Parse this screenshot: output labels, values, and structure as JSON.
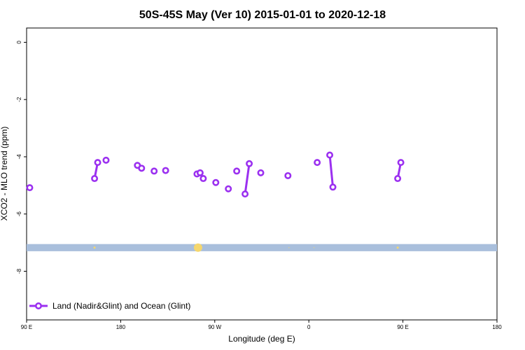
{
  "chart_data": {
    "type": "scatter",
    "title": "50S-45S May (Ver 10)   2015-01-01 to 2020-12-18",
    "xlabel": "Longitude (deg E)",
    "ylabel": "XCO2 - MLO trend (ppm)",
    "xlim": [
      90,
      450
    ],
    "ylim": [
      -9.7,
      0.5
    ],
    "x_ticks": [
      {
        "value": 90,
        "label": "90 E"
      },
      {
        "value": 180,
        "label": "180"
      },
      {
        "value": 270,
        "label": "90 W"
      },
      {
        "value": 360,
        "label": "0"
      },
      {
        "value": 450,
        "label": "90 E"
      }
    ],
    "x_ticks_end": {
      "value": 540,
      "label": "180"
    },
    "y_ticks": [
      {
        "value": 0,
        "label": "0"
      },
      {
        "value": -2,
        "label": "-2"
      },
      {
        "value": -4,
        "label": "-4"
      },
      {
        "value": -6,
        "label": "-6"
      },
      {
        "value": -8,
        "label": "-8"
      }
    ],
    "grid": false,
    "legend_placement": "bottom-left",
    "colors": {
      "series": "#9b30f0",
      "band": "#a9bfdc",
      "band_dots": "#f5d76e"
    },
    "series": [
      {
        "name": "Land (Nadir&Glint) and Ocean (Glint)",
        "points": [
          [
            93,
            -5.08
          ],
          [
            155,
            -4.76
          ],
          [
            158,
            -4.2
          ],
          [
            166,
            -4.12
          ],
          [
            196,
            -4.3
          ],
          [
            200,
            -4.4
          ],
          [
            212,
            -4.5
          ],
          [
            223,
            -4.48
          ],
          [
            253,
            -4.6
          ],
          [
            256,
            -4.56
          ],
          [
            259,
            -4.76
          ],
          [
            271,
            -4.9
          ],
          [
            283,
            -5.12
          ],
          [
            291,
            -4.5
          ],
          [
            299,
            -5.3
          ],
          [
            303,
            -4.24
          ],
          [
            314,
            -4.56
          ],
          [
            340,
            -4.66
          ],
          [
            368,
            -4.2
          ],
          [
            380,
            -3.94
          ],
          [
            383,
            -5.06
          ],
          [
            445,
            -4.76
          ],
          [
            448,
            -4.2
          ]
        ],
        "segments": [
          [
            1,
            2
          ],
          [
            14,
            15
          ],
          [
            19,
            20
          ],
          [
            21,
            22
          ]
        ]
      }
    ],
    "band": {
      "y_from": -7.3,
      "y_to": -7.05
    },
    "band_markers": [
      {
        "x": 155,
        "size": 1.5
      },
      {
        "x": 254,
        "size": 6
      },
      {
        "x": 341,
        "size": 0.6
      },
      {
        "x": 365,
        "size": 0.6
      },
      {
        "x": 445,
        "size": 1.5
      }
    ]
  }
}
